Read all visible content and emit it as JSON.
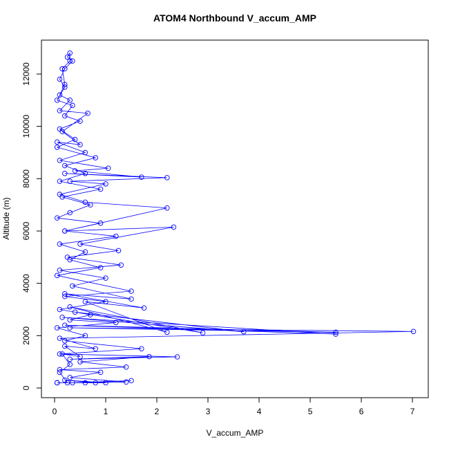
{
  "chart_data": {
    "type": "line",
    "title": "ATOM4 Northbound V_accum_AMP",
    "x_label": "V_accum_AMP",
    "y_label": "Altitude (m)",
    "color": "#0000ff",
    "markers": true,
    "xlim": [
      -0.257,
      7.31
    ],
    "ylim": [
      -370,
      13296
    ],
    "xticks": [
      0,
      1,
      2,
      3,
      4,
      5,
      6,
      7
    ],
    "yticks": [
      0,
      2000,
      4000,
      6000,
      8000,
      10000,
      12000
    ],
    "x": [
      0.05,
      0.25,
      0.1,
      0.3,
      0.15,
      0.5,
      0.2,
      0.8,
      0.1,
      7.02,
      0.3,
      5.5,
      0.2,
      5.5,
      0.15,
      3.7,
      0.4,
      2.9,
      0.3,
      2.2,
      0.6,
      1.75,
      0.2,
      1.5,
      0.35,
      1.0,
      0.1,
      1.3,
      0.25,
      1.25,
      0.5,
      2.33,
      0.2,
      2.2,
      0.6,
      0.1,
      1.0,
      0.3,
      2.2,
      0.2,
      1.7,
      0.4,
      1.05,
      0.1,
      0.6,
      0.05,
      0.5,
      0.15,
      0.65,
      0.1,
      0.3,
      0.1,
      0.2,
      0.15,
      0.3,
      0.3,
      0.25,
      0.35,
      0.2,
      0.1,
      0.2,
      0.05,
      0.35,
      0.2,
      0.5,
      0.1,
      0.4,
      0.05,
      0.8,
      0.2,
      0.6,
      0.1,
      0.9,
      0.15,
      0.7,
      0.3,
      0.05,
      0.9,
      0.2,
      1.2,
      0.1,
      0.6,
      0.3,
      0.9,
      0.05,
      1.5,
      0.2,
      1.0,
      0.1,
      0.7,
      0.3,
      1.2,
      0.05,
      0.6,
      0.2,
      1.7,
      0.1,
      2.4,
      0.3,
      1.85,
      0.5,
      1.4,
      0.1,
      0.9,
      0.3,
      1.4,
      0.6,
      1.5,
      0.35,
      1.0,
      0.2,
      0.8,
      0.05
    ],
    "y": [
      200,
      200,
      600,
      900,
      1300,
      1200,
      1600,
      1500,
      1900,
      2160,
      2300,
      2130,
      2400,
      2060,
      2700,
      2150,
      2900,
      2110,
      3100,
      2130,
      3300,
      3060,
      3600,
      3400,
      3900,
      4200,
      4500,
      4700,
      5000,
      5250,
      5500,
      6150,
      6000,
      6880,
      7100,
      7400,
      7800,
      7900,
      8040,
      8200,
      8060,
      8300,
      8400,
      8700,
      9000,
      9400,
      9300,
      9800,
      10500,
      10600,
      11000,
      11200,
      11600,
      12200,
      12500,
      12800,
      12650,
      12500,
      12200,
      11800,
      11500,
      11000,
      10800,
      10400,
      10200,
      9900,
      9500,
      9200,
      8800,
      8500,
      8200,
      7900,
      7600,
      7300,
      7000,
      6700,
      6500,
      6300,
      6000,
      5800,
      5500,
      5200,
      4900,
      4600,
      4300,
      3700,
      3500,
      3300,
      3000,
      2800,
      2600,
      2500,
      2300,
      2000,
      1800,
      1500,
      1300,
      1190,
      1100,
      1200,
      1000,
      800,
      700,
      600,
      400,
      230,
      200,
      280,
      200,
      200,
      300,
      200,
      200
    ]
  }
}
